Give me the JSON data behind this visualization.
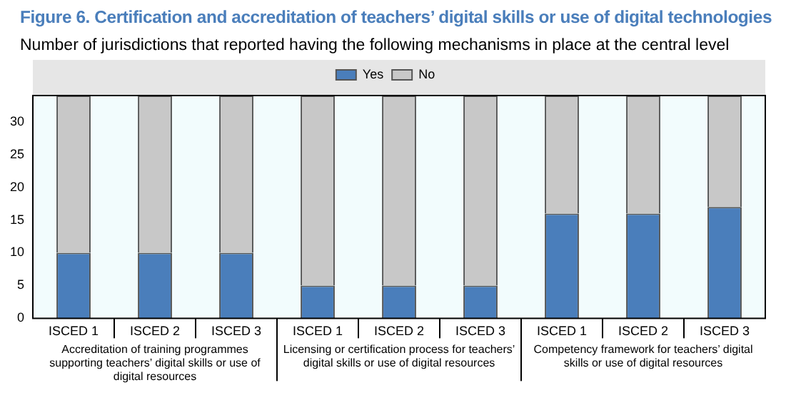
{
  "chart_data": {
    "type": "bar",
    "title": "Figure 6. Certification and accreditation of teachers’ digital skills or use of digital technologies",
    "subtitle": "Number of jurisdictions that reported having the following mechanisms in place at the central level",
    "categories": [
      "ISCED 1",
      "ISCED 2",
      "ISCED 3",
      "ISCED 1",
      "ISCED 2",
      "ISCED 3",
      "ISCED 1",
      "ISCED 2",
      "ISCED 3"
    ],
    "series": [
      {
        "name": "Yes",
        "color": "#4a7ebb",
        "values": [
          10,
          10,
          10,
          5,
          5,
          5,
          16,
          16,
          17
        ]
      },
      {
        "name": "No",
        "color": "#c8c8c8",
        "values": [
          24,
          24,
          24,
          29,
          29,
          29,
          18,
          18,
          17
        ]
      }
    ],
    "stacked": true,
    "ylim": [
      0,
      34
    ],
    "yticks": [
      0,
      5,
      10,
      15,
      20,
      25,
      30
    ],
    "legend": "top",
    "grid": false,
    "annotations": [
      "Accreditation of training programmes supporting teachers’ digital skills or use of digital resources",
      "Licensing or certification process for teachers’ digital skills or use of digital resources",
      "Competency framework for teachers’ digital skills or use of digital resources"
    ]
  }
}
